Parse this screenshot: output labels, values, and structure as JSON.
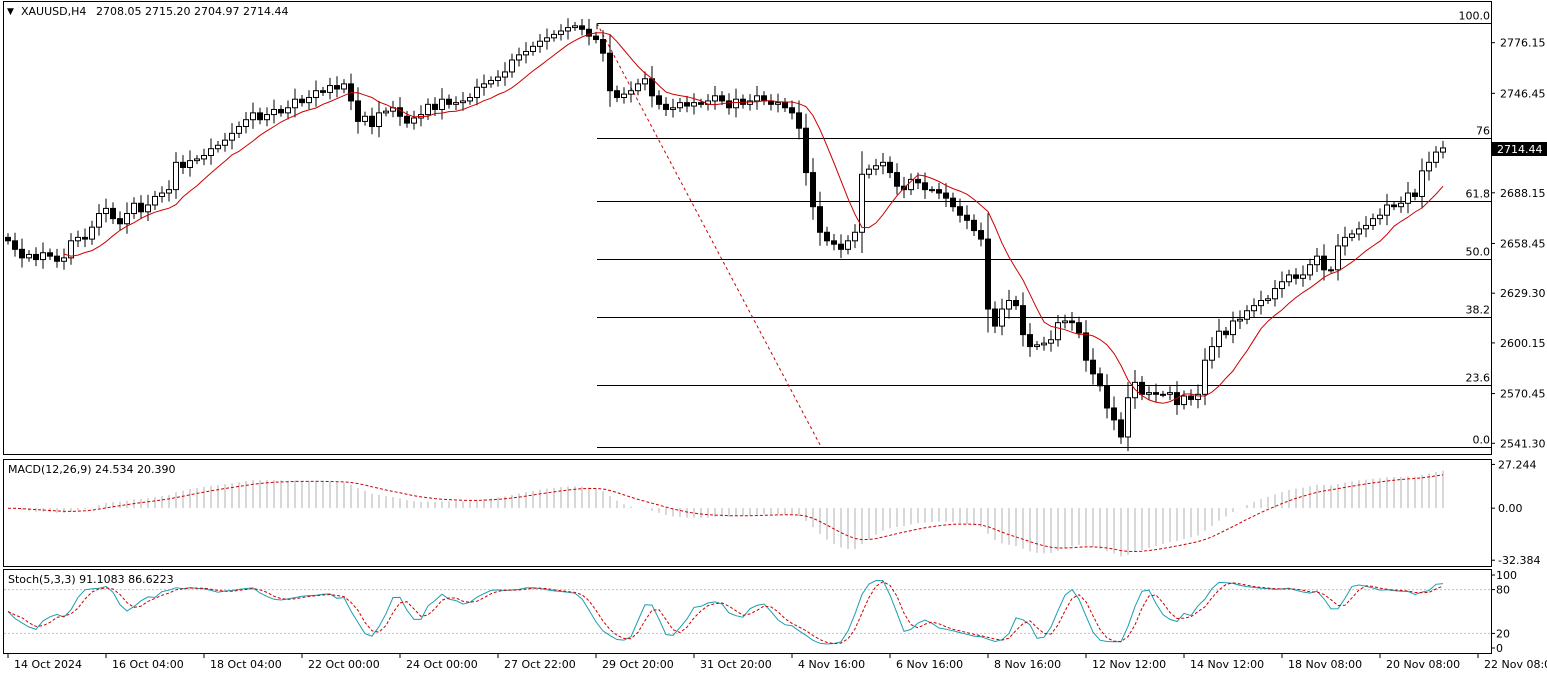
{
  "header": {
    "symbol_label": "XAUUSD,H4",
    "ohlc_text": "2708.05 2715.20 2704.97 2714.44",
    "menu_glyph": "▼"
  },
  "chart_data": {
    "type": "candlestick",
    "symbol": "XAUUSD",
    "timeframe": "H4",
    "last_price": 2714.44,
    "last_price_label": "2714.44",
    "price_axis": {
      "range": [
        2535.6,
        2800.0
      ],
      "tick_values": [
        2776.15,
        2746.45,
        2717.3,
        2688.15,
        2658.45,
        2629.3,
        2600.15,
        2570.45,
        2541.3
      ],
      "tick_labels": [
        "2776.15",
        "2746.45",
        "2717.30",
        "2688.15",
        "2658.45",
        "2629.30",
        "2600.15",
        "2570.45",
        "2541.30"
      ]
    },
    "time_axis": {
      "labels": [
        "14 Oct 2024",
        "16 Oct 04:00",
        "18 Oct 04:00",
        "22 Oct 00:00",
        "24 Oct 00:00",
        "27 Oct 22:00",
        "29 Oct 20:00",
        "31 Oct 20:00",
        "4 Nov 16:00",
        "6 Nov 16:00",
        "8 Nov 16:00",
        "12 Nov 12:00",
        "14 Nov 12:00",
        "18 Nov 08:00",
        "20 Nov 08:00",
        "22 Nov 08:00"
      ],
      "label_bar_index": [
        0,
        14,
        28,
        42,
        56,
        70,
        84,
        98,
        112,
        126,
        140,
        154,
        168,
        182,
        196,
        210
      ]
    },
    "candle_closes": [
      2660,
      2655,
      2650,
      2652,
      2649,
      2653,
      2651,
      2648,
      2650,
      2660,
      2662,
      2661,
      2668,
      2676,
      2679,
      2673,
      2670,
      2676,
      2682,
      2677,
      2681,
      2686,
      2688,
      2690,
      2706,
      2703,
      2707,
      2708,
      2710,
      2714,
      2716,
      2719,
      2723,
      2727,
      2731,
      2735,
      2731,
      2734,
      2737,
      2735,
      2738,
      2743,
      2741,
      2744,
      2748,
      2747,
      2751,
      2749,
      2752,
      2742,
      2730,
      2733,
      2727,
      2735,
      2736,
      2738,
      2733,
      2729,
      2732,
      2734,
      2740,
      2737,
      2743,
      2740,
      2741,
      2742,
      2744,
      2750,
      2752,
      2754,
      2756,
      2759,
      2766,
      2769,
      2771,
      2774,
      2777,
      2779,
      2781,
      2783,
      2785,
      2786,
      2784,
      2780,
      2778,
      2770,
      2748,
      2744,
      2746,
      2748,
      2752,
      2755,
      2745,
      2740,
      2737,
      2738,
      2741,
      2739,
      2741,
      2740,
      2742,
      2745,
      2742,
      2738,
      2743,
      2740,
      2742,
      2745,
      2742,
      2740,
      2741,
      2738,
      2735,
      2726,
      2700,
      2680,
      2665,
      2660,
      2658,
      2655,
      2660,
      2665,
      2699,
      2702,
      2704,
      2706,
      2700,
      2692,
      2690,
      2696,
      2694,
      2690,
      2690,
      2688,
      2685,
      2680,
      2675,
      2672,
      2666,
      2661,
      2620,
      2610,
      2620,
      2625,
      2622,
      2605,
      2598,
      2599,
      2600,
      2602,
      2612,
      2613,
      2612,
      2606,
      2590,
      2582,
      2575,
      2562,
      2555,
      2545,
      2568,
      2577,
      2570,
      2571,
      2570,
      2570,
      2571,
      2564,
      2569,
      2567,
      2570,
      2590,
      2598,
      2607,
      2605,
      2613,
      2614,
      2619,
      2622,
      2625,
      2626,
      2632,
      2636,
      2640,
      2638,
      2640,
      2646,
      2651,
      2643,
      2643,
      2657,
      2662,
      2664,
      2667,
      2669,
      2673,
      2675,
      2681,
      2680,
      2682,
      2688,
      2686,
      2701,
      2706,
      2712,
      2714.44
    ]
  },
  "annotations": {
    "fibonacci": {
      "levels": [
        100.0,
        76,
        61.8,
        50.0,
        38.2,
        23.6,
        0.0
      ],
      "labels": [
        "100.0",
        "76",
        "61.8",
        "50.0",
        "38.2",
        "23.6",
        "0.0"
      ],
      "prices": [
        2787.5,
        2720.5,
        2683.5,
        2649.5,
        2615.5,
        2575.5,
        2539.3
      ]
    },
    "moving_average_color": "#cc0000",
    "fib_color": "#808080",
    "trend_line_color": "#cc0000"
  },
  "macd": {
    "label": "MACD(12,26,9) 24.534 20.390",
    "axis": {
      "range": [
        -36,
        30
      ],
      "tick_values": [
        27.244,
        0.0,
        -32.384
      ],
      "tick_labels": [
        "27.244",
        "0.00",
        "-32.384"
      ]
    },
    "current_value": 24.534,
    "signal_value": 20.39
  },
  "stoch": {
    "label": "Stoch(5,3,3) 91.1083 86.6223",
    "axis": {
      "range": [
        0,
        100
      ],
      "tick_values": [
        100,
        80,
        20,
        0
      ],
      "tick_labels": [
        "100",
        "80",
        "20",
        "0"
      ]
    },
    "current_k": 91.1083,
    "current_d": 86.6223
  }
}
